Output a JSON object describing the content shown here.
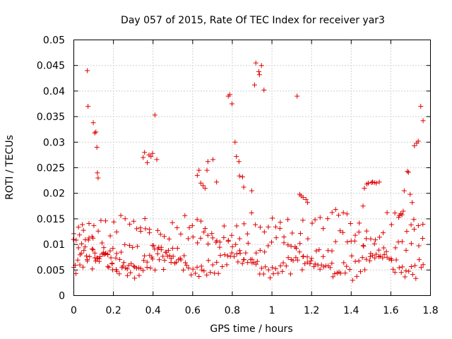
{
  "chart_data": {
    "type": "scatter",
    "title": "Day 057 of 2015, Rate Of TEC Index for receiver yar3",
    "xlabel": "GPS time / hours",
    "ylabel": "ROTI / TECUs",
    "xlim": [
      0,
      1.8
    ],
    "ylim": [
      0,
      0.05
    ],
    "x_ticks": [
      0,
      0.2,
      0.4,
      0.6,
      0.8,
      1,
      1.2,
      1.4,
      1.6,
      1.8
    ],
    "x_tick_labels": [
      "0",
      "0.2",
      "0.4",
      "0.6",
      "0.8",
      "1",
      "1.2",
      "1.4",
      "1.6",
      "1.8"
    ],
    "y_ticks": [
      0,
      0.005,
      0.01,
      0.015,
      0.02,
      0.025,
      0.03,
      0.035,
      0.04,
      0.045,
      0.05
    ],
    "y_tick_labels": [
      "0",
      "0.005",
      "0.01",
      "0.015",
      "0.02",
      "0.025",
      "0.03",
      "0.035",
      "0.04",
      "0.045",
      "0.05"
    ],
    "grid": true,
    "marker": "+",
    "color": "#e00000",
    "series": [
      {
        "name": "yar3",
        "x": [
          0.0,
          0.01,
          0.02,
          0.03,
          0.04,
          0.05,
          0.06,
          0.07,
          0.08,
          0.09,
          0.1,
          0.11,
          0.12,
          0.13,
          0.14,
          0.15,
          0.16,
          0.17,
          0.18,
          0.19,
          0.2,
          0.21,
          0.22,
          0.23,
          0.24,
          0.25,
          0.26,
          0.27,
          0.28,
          0.29,
          0.3,
          0.31,
          0.32,
          0.33,
          0.34,
          0.35,
          0.36,
          0.37,
          0.38,
          0.39,
          0.4,
          0.41,
          0.42,
          0.43,
          0.44,
          0.45,
          0.46,
          0.47,
          0.48,
          0.49,
          0.5,
          0.52,
          0.54,
          0.56,
          0.58,
          0.6,
          0.62,
          0.64,
          0.66,
          0.68,
          0.7,
          0.72,
          0.74,
          0.76,
          0.78,
          0.8,
          0.82,
          0.84,
          0.86,
          0.88,
          0.9,
          0.92,
          0.94,
          0.96,
          0.98,
          1.0,
          1.02,
          1.04,
          1.06,
          1.08,
          1.1,
          1.12,
          1.14,
          1.16,
          1.18,
          1.2,
          1.22,
          1.24,
          1.26,
          1.28,
          1.3,
          1.32,
          1.34,
          1.36,
          1.38,
          1.4,
          1.42,
          1.44,
          1.46,
          1.48,
          1.5,
          1.52,
          1.54,
          1.56,
          1.58,
          1.6,
          1.62,
          1.64,
          1.66,
          1.68,
          1.7,
          1.72,
          1.74,
          1.76,
          0.0,
          0.01,
          0.02,
          0.03,
          0.04,
          0.05,
          0.06,
          0.07,
          0.08,
          0.09,
          0.1,
          0.11,
          0.12,
          0.13,
          0.14,
          0.15,
          0.16,
          0.17,
          0.18,
          0.19,
          0.2,
          0.22,
          0.24,
          0.26,
          0.28,
          0.3,
          0.32,
          0.34,
          0.36,
          0.38,
          0.4,
          0.42,
          0.44,
          0.46,
          0.48,
          0.5,
          0.52,
          0.54,
          0.56,
          0.58,
          0.6,
          0.62,
          0.64,
          0.66,
          0.68,
          0.7,
          0.72,
          0.74,
          0.76,
          0.78,
          0.8,
          0.82,
          0.84,
          0.86,
          0.88,
          0.9,
          0.92,
          0.94,
          0.96,
          0.98,
          1.0,
          1.02,
          1.04,
          1.06,
          1.08,
          1.1,
          1.12,
          1.14,
          1.16,
          1.18,
          1.2,
          1.22,
          1.24,
          1.26,
          1.28,
          1.3,
          1.32,
          1.34,
          1.36,
          1.38,
          1.4,
          1.42,
          1.44,
          1.46,
          1.48,
          1.5,
          1.52,
          1.54,
          1.56,
          1.58,
          1.6,
          1.62,
          1.64,
          1.66,
          1.68,
          1.7,
          1.72,
          1.74,
          1.76,
          0.0,
          0.02,
          0.04,
          0.06,
          0.08,
          0.1,
          0.12,
          0.14,
          0.16,
          0.18,
          0.2,
          0.22,
          0.24,
          0.26,
          0.28,
          0.3,
          0.32,
          0.34,
          0.36,
          0.38,
          0.4,
          0.42,
          0.44,
          0.46,
          0.48,
          0.5,
          0.52,
          0.54,
          0.56,
          0.58,
          0.6,
          0.62,
          0.64,
          0.66,
          0.68,
          0.7,
          0.72,
          0.74,
          0.76,
          0.78,
          0.8,
          0.82,
          0.84,
          0.86,
          0.88,
          0.9,
          0.92,
          0.94,
          0.96,
          0.98,
          1.0,
          1.02,
          1.04,
          1.06,
          1.08,
          1.1,
          1.12,
          1.14,
          1.16,
          1.18,
          1.2,
          1.22,
          1.24,
          1.26,
          1.28,
          1.3,
          1.32,
          1.34,
          1.36,
          1.38,
          1.4,
          1.42,
          1.44,
          1.46,
          1.48,
          1.5,
          1.52,
          1.54,
          1.56,
          1.58,
          1.6,
          1.62,
          1.64,
          1.66,
          1.68,
          1.7,
          1.72,
          1.74,
          1.76,
          0.01,
          0.03,
          0.05,
          0.07,
          0.09,
          0.11,
          0.13,
          0.15,
          0.17,
          0.19,
          0.21,
          0.23,
          0.25,
          0.27,
          0.29,
          0.31,
          0.33,
          0.35,
          0.37,
          0.39,
          0.41,
          0.43,
          0.45,
          0.47,
          0.49,
          0.51,
          0.53,
          0.55,
          0.57,
          0.59,
          0.61,
          0.63,
          0.65,
          0.67,
          0.69,
          0.71,
          0.73,
          0.75,
          0.77,
          0.79,
          0.81,
          0.83,
          0.85,
          0.87,
          0.89,
          0.91,
          0.93,
          0.95,
          0.97,
          0.99,
          1.01,
          1.03,
          1.05,
          1.07,
          1.09,
          1.11,
          1.13,
          1.15,
          1.17,
          1.19,
          1.21,
          1.23,
          1.25,
          1.27,
          1.29,
          1.31,
          1.33,
          1.35,
          1.37,
          1.39,
          1.41,
          1.43,
          1.45,
          1.47,
          1.49,
          1.51,
          1.53,
          1.55,
          1.57,
          1.59,
          1.61,
          1.63,
          1.65,
          1.67,
          1.69,
          1.71,
          1.73,
          1.75,
          0.07,
          0.075,
          0.1,
          0.105,
          0.11,
          0.115,
          0.12,
          0.125,
          0.35,
          0.36,
          0.37,
          0.38,
          0.39,
          0.4,
          0.41,
          0.42,
          0.62,
          0.63,
          0.64,
          0.65,
          0.66,
          0.67,
          0.68,
          0.7,
          0.72,
          0.78,
          0.79,
          0.8,
          0.81,
          0.82,
          0.83,
          0.84,
          0.85,
          0.86,
          0.9,
          0.91,
          0.92,
          0.93,
          0.94,
          0.95,
          0.96,
          1.13,
          1.14,
          1.15,
          1.16,
          1.17,
          1.18,
          1.46,
          1.47,
          1.48,
          1.49,
          1.5,
          1.51,
          1.52,
          1.53,
          1.54,
          1.64,
          1.65,
          1.66,
          1.67,
          1.68,
          1.69,
          1.7,
          1.71,
          1.72,
          1.73,
          1.74,
          1.75,
          1.76
        ]
      }
    ]
  }
}
